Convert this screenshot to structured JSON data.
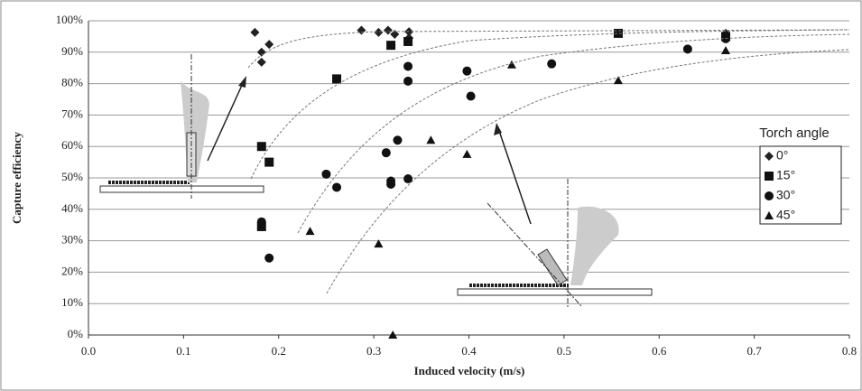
{
  "chart_data": {
    "type": "scatter",
    "xlabel": "Induced velocity (m/s)",
    "ylabel": "Capture efficiency",
    "xlim": [
      0,
      0.8
    ],
    "xticks": [
      {
        "value": 0,
        "label": "0.0"
      },
      0.1,
      0.2,
      0.3,
      0.4,
      0.5,
      0.6,
      0.7,
      0.8
    ],
    "ylim": [
      0,
      100
    ],
    "yticks": [
      {
        "value": 0,
        "label": "0%"
      },
      {
        "value": 10,
        "label": "10%"
      },
      {
        "value": 20,
        "label": "20%"
      },
      {
        "value": 30,
        "label": "30%"
      },
      {
        "value": 40,
        "label": "40%"
      },
      {
        "value": 50,
        "label": "50%"
      },
      {
        "value": 60,
        "label": "60%"
      },
      {
        "value": 70,
        "label": "70%"
      },
      {
        "value": 80,
        "label": "80%"
      },
      {
        "value": 90,
        "label": "90%"
      },
      {
        "value": 100,
        "label": "100%"
      }
    ],
    "grid": true,
    "legend_title": "Torch angle",
    "legend": "right",
    "series": [
      {
        "name": "0°",
        "color": "#222222",
        "marker": "diamond",
        "x": [
          0.175,
          0.182,
          0.182,
          0.19,
          0.287,
          0.305,
          0.315,
          0.322,
          0.337,
          0.337,
          0.67
        ],
        "values": [
          96.3,
          90,
          86.8,
          92.5,
          97,
          96.3,
          97,
          95.7,
          96.5,
          94.5,
          96
        ]
      },
      {
        "name": "15°",
        "color": "#111111",
        "marker": "square",
        "x": [
          0.182,
          0.19,
          0.182,
          0.261,
          0.318,
          0.336,
          0.557,
          0.67
        ],
        "values": [
          60,
          55,
          34.5,
          81.5,
          92.2,
          93.4,
          96,
          95
        ]
      },
      {
        "name": "30°",
        "color": "#111111",
        "marker": "circle",
        "x": [
          0.182,
          0.19,
          0.25,
          0.261,
          0.313,
          0.318,
          0.318,
          0.325,
          0.336,
          0.336,
          0.336,
          0.398,
          0.402,
          0.487,
          0.63,
          0.67
        ],
        "values": [
          36,
          24.5,
          51.2,
          47,
          58,
          49,
          48,
          62,
          85.5,
          80.8,
          49.7,
          84,
          76,
          86.3,
          91,
          94.3
        ]
      },
      {
        "name": "45°",
        "color": "#111111",
        "marker": "triangle",
        "x": [
          0.233,
          0.305,
          0.32,
          0.36,
          0.398,
          0.445,
          0.557,
          0.67
        ],
        "values": [
          33,
          29,
          0,
          62,
          57.5,
          86,
          81,
          90.5
        ]
      }
    ]
  }
}
